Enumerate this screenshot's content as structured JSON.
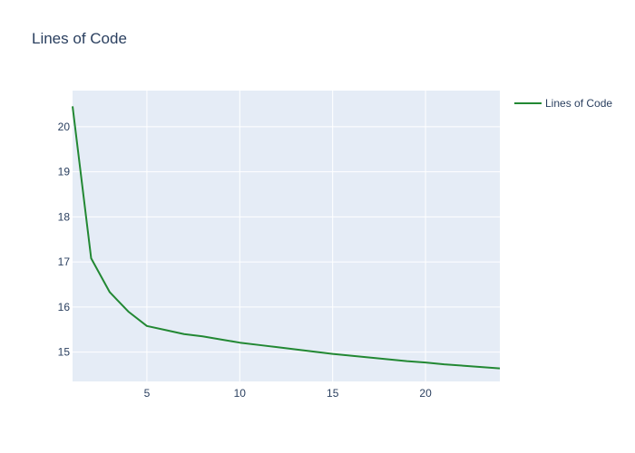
{
  "chart_data": {
    "type": "line",
    "title": "Lines of Code",
    "xlabel": "",
    "ylabel": "",
    "x": [
      1,
      2,
      3,
      4,
      5,
      6,
      7,
      8,
      9,
      10,
      11,
      12,
      13,
      14,
      15,
      16,
      17,
      18,
      19,
      20,
      21,
      22,
      23,
      24
    ],
    "series": [
      {
        "name": "Lines of Code",
        "color": "#228833",
        "values": [
          20.45,
          17.08,
          16.33,
          15.9,
          15.58,
          15.49,
          15.4,
          15.35,
          15.28,
          15.21,
          15.16,
          15.11,
          15.06,
          15.01,
          14.96,
          14.92,
          14.88,
          14.84,
          14.8,
          14.77,
          14.73,
          14.7,
          14.67,
          14.64
        ]
      }
    ],
    "xlim": [
      1,
      24
    ],
    "ylim": [
      14.35,
      20.8
    ],
    "xticks": [
      5,
      10,
      15,
      20
    ],
    "yticks": [
      15,
      16,
      17,
      18,
      19,
      20
    ],
    "grid": true,
    "plot_background": "#e5ecf6",
    "grid_color": "#ffffff",
    "text_color": "#2a3f5f",
    "legend": {
      "position": "top-right",
      "entries": [
        "Lines of Code"
      ]
    }
  }
}
